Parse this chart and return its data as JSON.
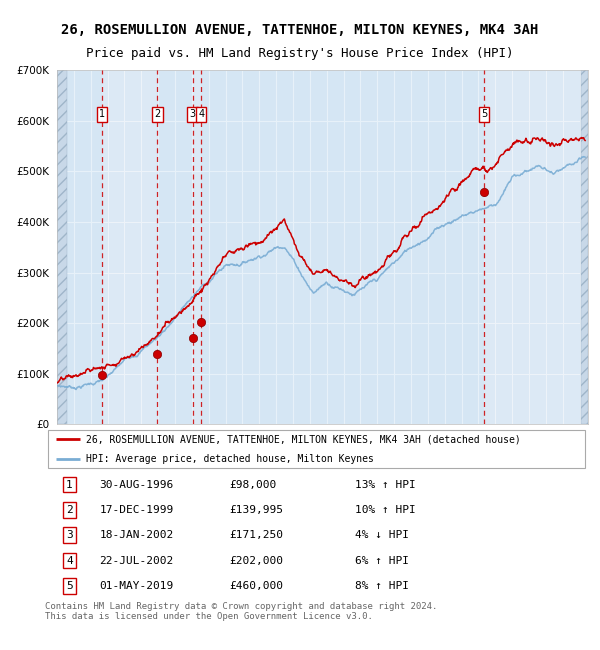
{
  "title": "26, ROSEMULLION AVENUE, TATTENHOE, MILTON KEYNES, MK4 3AH",
  "subtitle": "Price paid vs. HM Land Registry's House Price Index (HPI)",
  "ylim": [
    0,
    700000
  ],
  "yticks": [
    0,
    100000,
    200000,
    300000,
    400000,
    500000,
    600000,
    700000
  ],
  "ytick_labels": [
    "£0",
    "£100K",
    "£200K",
    "£300K",
    "£400K",
    "£500K",
    "£600K",
    "£700K"
  ],
  "xlim_start": 1994.0,
  "xlim_end": 2025.5,
  "background_color": "#dce9f5",
  "grid_color": "#ffffff",
  "red_line_color": "#cc0000",
  "blue_line_color": "#7aadd4",
  "vline_color": "#cc0000",
  "sale_dates_x": [
    1996.664,
    1999.956,
    2002.046,
    2002.554,
    2019.329
  ],
  "sale_prices": [
    98000,
    139995,
    171250,
    202000,
    460000
  ],
  "sale_labels": [
    "1",
    "2",
    "3",
    "4",
    "5"
  ],
  "legend_red": "26, ROSEMULLION AVENUE, TATTENHOE, MILTON KEYNES, MK4 3AH (detached house)",
  "legend_blue": "HPI: Average price, detached house, Milton Keynes",
  "table_rows": [
    [
      "1",
      "30-AUG-1996",
      "£98,000",
      "13% ↑ HPI"
    ],
    [
      "2",
      "17-DEC-1999",
      "£139,995",
      "10% ↑ HPI"
    ],
    [
      "3",
      "18-JAN-2002",
      "£171,250",
      "4% ↓ HPI"
    ],
    [
      "4",
      "22-JUL-2002",
      "£202,000",
      "6% ↑ HPI"
    ],
    [
      "5",
      "01-MAY-2019",
      "£460,000",
      "8% ↑ HPI"
    ]
  ],
  "footnote": "Contains HM Land Registry data © Crown copyright and database right 2024.\nThis data is licensed under the Open Government Licence v3.0.",
  "title_fontsize": 10,
  "subtitle_fontsize": 9
}
